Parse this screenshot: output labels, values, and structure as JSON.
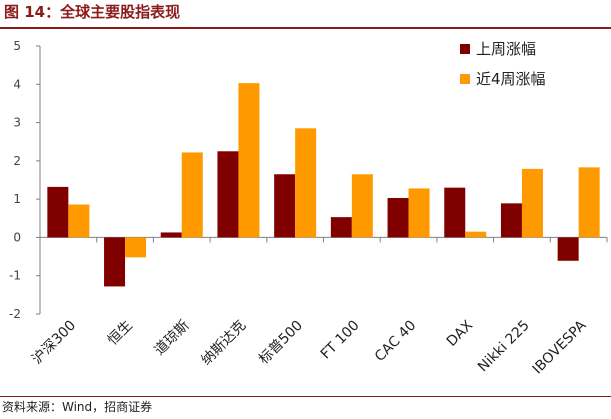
{
  "figure_title": "图 14：全球主要股指表现",
  "source": "资料来源：Wind，招商证券",
  "colors": {
    "title": "#8b1a1a",
    "series_last_week": "#800000",
    "series_4_weeks": "#FF9900",
    "axis": "#808080"
  },
  "chart_data": {
    "type": "bar",
    "title": "",
    "xlabel": "",
    "ylabel": "",
    "ylim": [
      -2,
      5
    ],
    "yticks": [
      -2,
      -1,
      0,
      1,
      2,
      3,
      4,
      5
    ],
    "grid": false,
    "legend_position": "top-right",
    "categories": [
      "沪深300",
      "恒生",
      "道琼斯",
      "纳斯达克",
      "标普500",
      "FT 100",
      "CAC 40",
      "DAX",
      "Nikki 225",
      "IBOVESPA"
    ],
    "series": [
      {
        "name": "上周涨幅",
        "color": "#800000",
        "values": [
          1.32,
          -1.28,
          0.13,
          2.25,
          1.65,
          0.53,
          1.03,
          1.3,
          0.89,
          -0.61
        ]
      },
      {
        "name": "近4周涨幅",
        "color": "#FF9900",
        "values": [
          0.86,
          -0.52,
          2.22,
          4.03,
          2.85,
          1.65,
          1.28,
          0.15,
          1.79,
          1.83
        ]
      }
    ]
  }
}
